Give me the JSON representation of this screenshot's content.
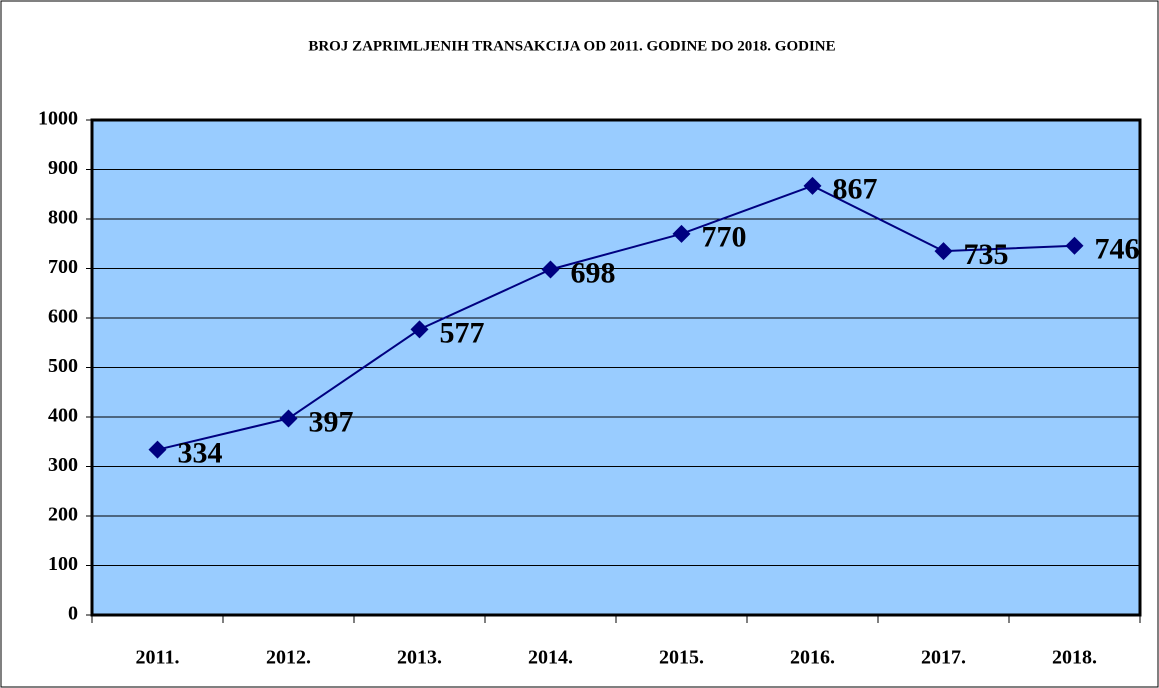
{
  "chart_data": {
    "type": "line",
    "title": "BROJ ZAPRIMLJENIH TRANSAKCIJA OD 2011. GODINE DO 2018. GODINE",
    "categories": [
      "2011.",
      "2012.",
      "2013.",
      "2014.",
      "2015.",
      "2016.",
      "2017.",
      "2018."
    ],
    "values": [
      334,
      397,
      577,
      698,
      770,
      867,
      735,
      746
    ],
    "color": "#000080",
    "ylim": [
      0,
      1000
    ],
    "yticks": [
      0,
      100,
      200,
      300,
      400,
      500,
      600,
      700,
      800,
      900,
      1000
    ],
    "grid": true
  }
}
